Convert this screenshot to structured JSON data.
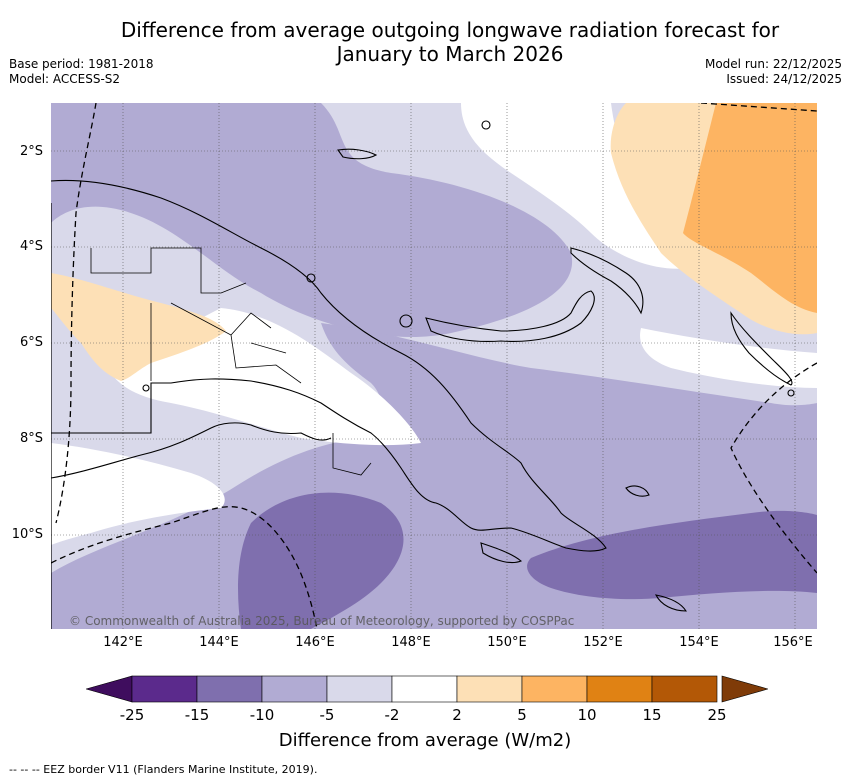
{
  "title": {
    "line1": "Difference from average outgoing longwave radiation forecast for",
    "line2": "January to March 2026"
  },
  "meta_left": {
    "base_period": "Base period: 1981-2018",
    "model": "Model: ACCESS-S2"
  },
  "meta_right": {
    "model_run": "Model run: 22/12/2025",
    "issued": "Issued: 24/12/2025"
  },
  "axes": {
    "lat_labels": [
      "2°S",
      "4°S",
      "6°S",
      "8°S",
      "10°S"
    ],
    "lon_labels": [
      "142°E",
      "144°E",
      "146°E",
      "148°E",
      "150°E",
      "152°E",
      "154°E",
      "156°E"
    ]
  },
  "copyright": "© Commonwealth of Australia 2025, Bureau of Meteorology, supported by COSPPac",
  "colorbar": {
    "labels": [
      "-25",
      "-15",
      "-10",
      "-5",
      "-2",
      "2",
      "5",
      "10",
      "15",
      "25"
    ],
    "colors": [
      "#5b2a8c",
      "#7f6fae",
      "#b1abd3",
      "#d9d9ea",
      "#ffffff",
      "#fde0b6",
      "#fdb462",
      "#e08214",
      "#b35806"
    ],
    "under_color": "#3f0d5e",
    "over_color": "#7f3b08",
    "title": "Difference from average (W/m2)"
  },
  "footnote": "--  --  -- EEZ border V11 (Flanders Marine Institute, 2019)."
}
